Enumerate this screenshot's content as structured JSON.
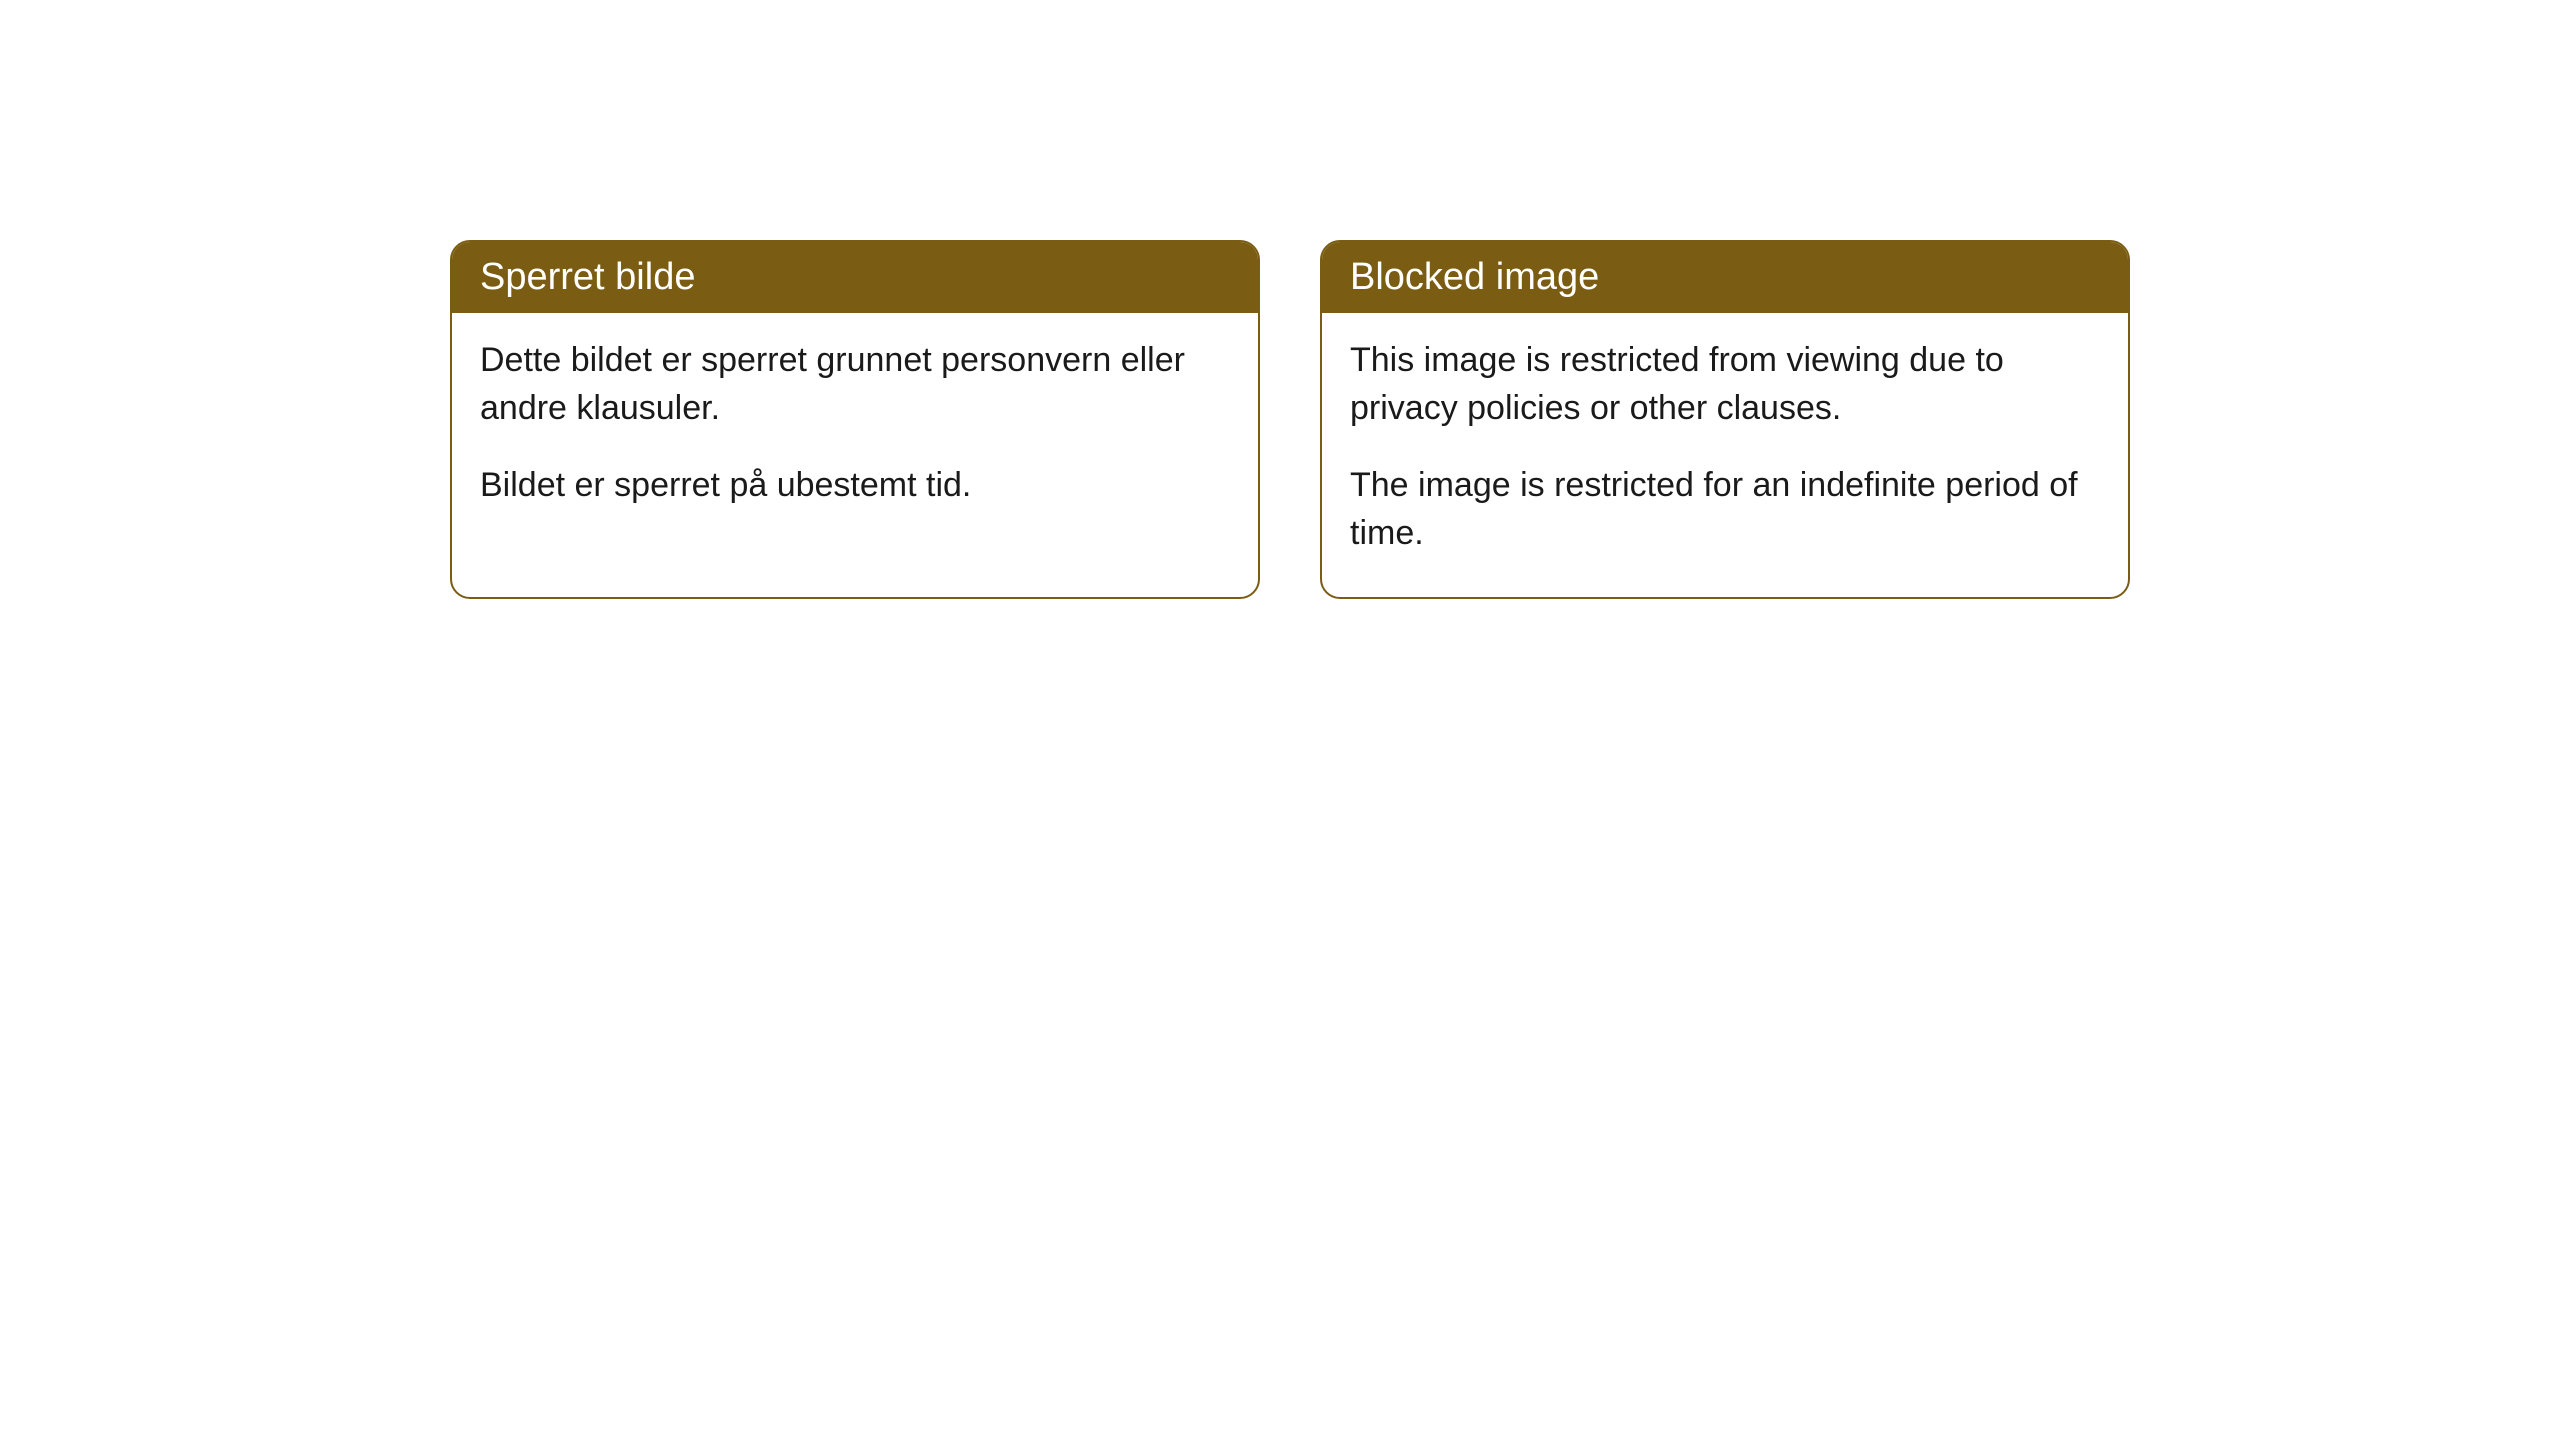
{
  "cards": [
    {
      "title": "Sperret bilde",
      "paragraph1": "Dette bildet er sperret grunnet personvern eller andre klausuler.",
      "paragraph2": "Bildet er sperret på ubestemt tid."
    },
    {
      "title": "Blocked image",
      "paragraph1": "This image is restricted from viewing due to privacy policies or other clauses.",
      "paragraph2": "The image is restricted for an indefinite period of time."
    }
  ],
  "styling": {
    "header_background": "#7a5c13",
    "header_text_color": "#ffffff",
    "card_border_color": "#7a5c13",
    "card_background": "#ffffff",
    "body_text_color": "#1a1a1a",
    "page_background": "#ffffff",
    "border_radius": 20,
    "header_fontsize": 38,
    "body_fontsize": 34
  }
}
